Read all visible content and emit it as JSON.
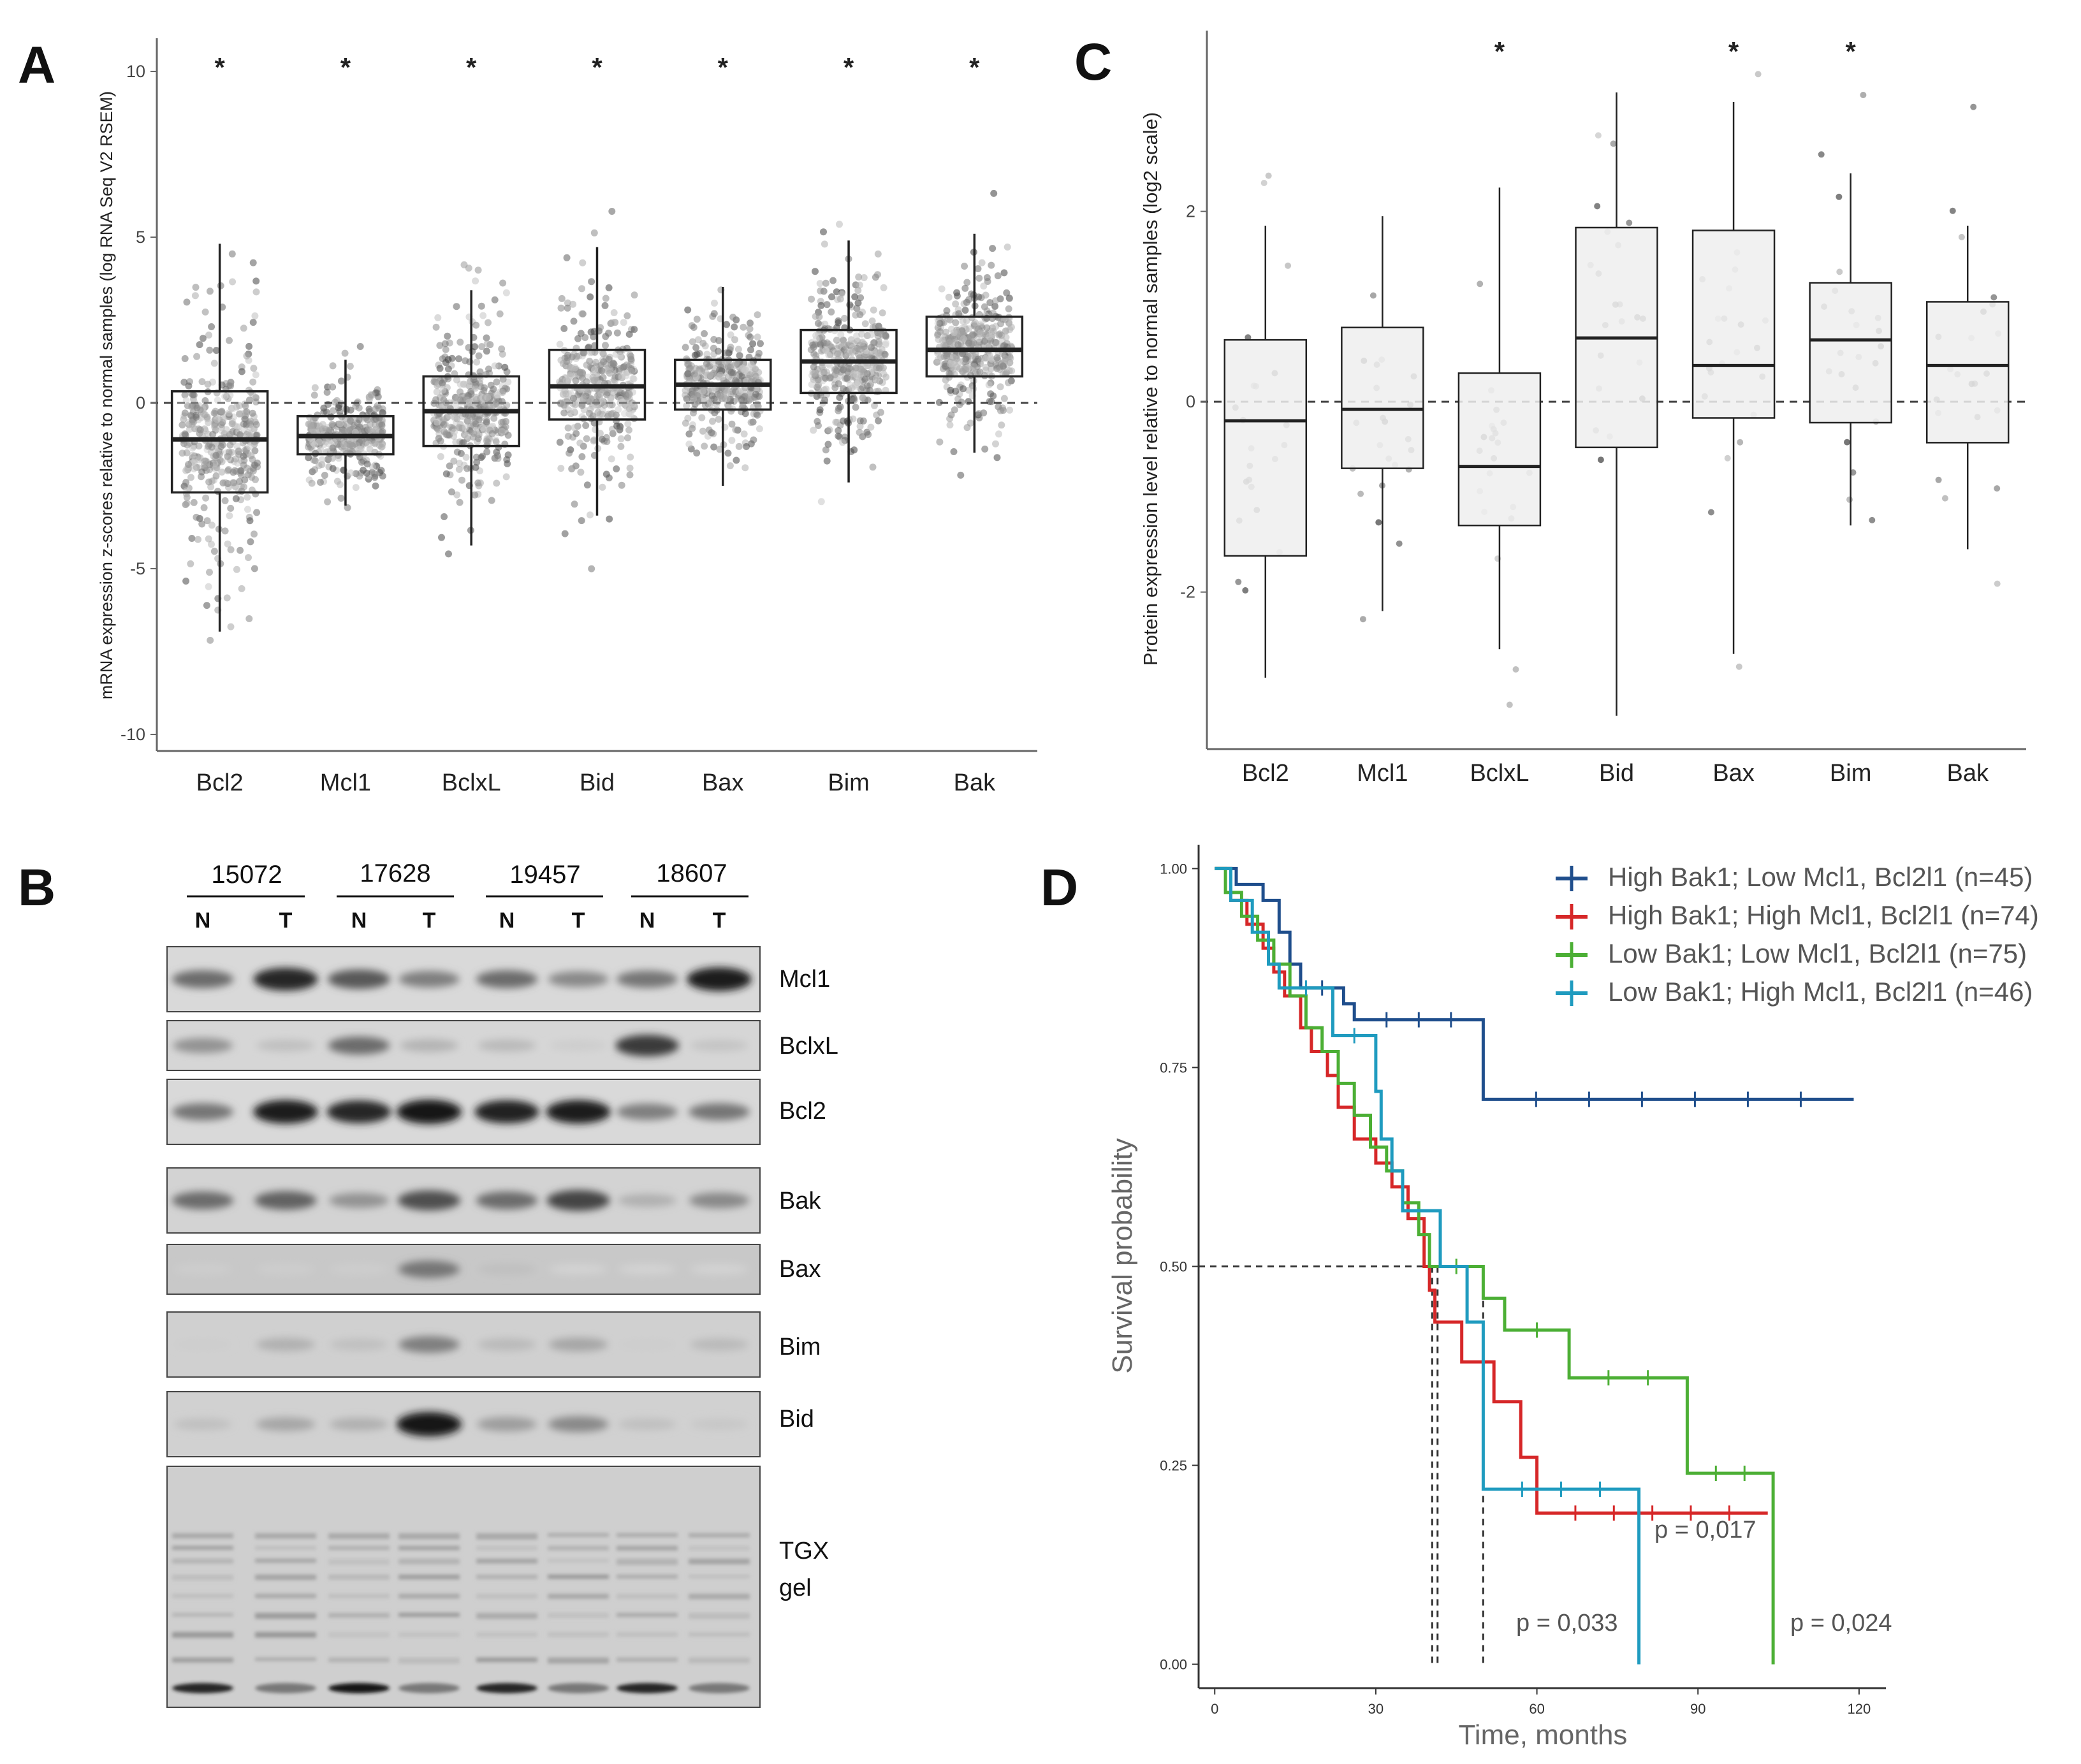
{
  "chart_data": [
    {
      "panel": "A",
      "type": "box",
      "ylabel": "mRNA expression z-scores relative to normal samples (log RNA Seq V2 RSEM)",
      "ylim": [
        -10.5,
        11
      ],
      "yticks": [
        10,
        5,
        0,
        -5,
        -10
      ],
      "reference_line": 0,
      "categories": [
        "Bcl2",
        "Mcl1",
        "BclxL",
        "Bid",
        "Bax",
        "Bim",
        "Bak"
      ],
      "significance": [
        "*",
        "*",
        "*",
        "*",
        "*",
        "*",
        "*"
      ],
      "boxes": [
        {
          "q1": -2.7,
          "median": -1.1,
          "q3": 0.35,
          "lo": -6.9,
          "hi": 4.8
        },
        {
          "q1": -1.55,
          "median": -1.0,
          "q3": -0.4,
          "lo": -3.1,
          "hi": 1.3
        },
        {
          "q1": -1.3,
          "median": -0.25,
          "q3": 0.8,
          "lo": -4.3,
          "hi": 3.4
        },
        {
          "q1": -0.5,
          "median": 0.5,
          "q3": 1.6,
          "lo": -3.4,
          "hi": 4.7
        },
        {
          "q1": -0.2,
          "median": 0.55,
          "q3": 1.3,
          "lo": -2.5,
          "hi": 3.5
        },
        {
          "q1": 0.3,
          "median": 1.25,
          "q3": 2.2,
          "lo": -2.4,
          "hi": 4.9
        },
        {
          "q1": 0.8,
          "median": 1.6,
          "q3": 2.6,
          "lo": -1.5,
          "hi": 5.1
        }
      ]
    },
    {
      "panel": "C",
      "type": "box",
      "ylabel": "Protein expression level relative to normal samples (log2 scale)",
      "ylim": [
        -3.65,
        3.9
      ],
      "yticks": [
        2,
        0,
        -2
      ],
      "reference_line": 0,
      "categories": [
        "Bcl2",
        "Mcl1",
        "BclxL",
        "Bid",
        "Bax",
        "Bim",
        "Bak"
      ],
      "significance": [
        "",
        "",
        "*",
        "",
        "*",
        "*",
        ""
      ],
      "boxes": [
        {
          "q1": -1.62,
          "median": -0.2,
          "q3": 0.65,
          "lo": -2.9,
          "hi": 1.85
        },
        {
          "q1": -0.7,
          "median": -0.08,
          "q3": 0.78,
          "lo": -2.2,
          "hi": 1.95
        },
        {
          "q1": -1.3,
          "median": -0.68,
          "q3": 0.3,
          "lo": -2.6,
          "hi": 2.25
        },
        {
          "q1": -0.48,
          "median": 0.67,
          "q3": 1.83,
          "lo": -3.3,
          "hi": 3.25
        },
        {
          "q1": -0.17,
          "median": 0.38,
          "q3": 1.8,
          "lo": -2.65,
          "hi": 3.15
        },
        {
          "q1": -0.22,
          "median": 0.65,
          "q3": 1.25,
          "lo": -1.3,
          "hi": 2.4
        },
        {
          "q1": -0.43,
          "median": 0.38,
          "q3": 1.05,
          "lo": -1.55,
          "hi": 1.85
        }
      ]
    },
    {
      "panel": "D",
      "type": "line",
      "subtype": "kaplan-meier",
      "xlabel": "Time, months",
      "ylabel": "Survival probability",
      "xlim": [
        -3,
        125
      ],
      "ylim": [
        -0.03,
        1.03
      ],
      "xticks": [
        0,
        30,
        60,
        90,
        120
      ],
      "yticks": [
        "1.00",
        "0.75",
        "0.50",
        "0.25",
        "0.00"
      ],
      "median_line": 0.5,
      "median_times": [
        40.5,
        41.5,
        50
      ],
      "series": [
        {
          "name": "High Bak1; Low Mcl1, Bcl2l1 (n=45)",
          "color": "#1f4e8c",
          "points": [
            [
              0,
              1
            ],
            [
              4,
              1
            ],
            [
              4,
              0.98
            ],
            [
              9,
              0.98
            ],
            [
              9,
              0.96
            ],
            [
              12,
              0.96
            ],
            [
              12,
              0.92
            ],
            [
              14,
              0.92
            ],
            [
              14,
              0.88
            ],
            [
              16,
              0.88
            ],
            [
              16,
              0.85
            ],
            [
              24,
              0.85
            ],
            [
              24,
              0.83
            ],
            [
              26,
              0.83
            ],
            [
              26,
              0.81
            ],
            [
              50,
              0.81
            ],
            [
              50,
              0.71
            ],
            [
              119,
              0.71
            ]
          ]
        },
        {
          "name": "High Bak1; High Mcl1, Bcl2l1 (n=74)",
          "color": "#d62728",
          "points": [
            [
              0,
              1
            ],
            [
              3,
              1
            ],
            [
              3,
              0.96
            ],
            [
              6,
              0.96
            ],
            [
              6,
              0.93
            ],
            [
              9,
              0.93
            ],
            [
              9,
              0.9
            ],
            [
              11,
              0.9
            ],
            [
              11,
              0.87
            ],
            [
              13,
              0.87
            ],
            [
              13,
              0.84
            ],
            [
              16,
              0.84
            ],
            [
              16,
              0.8
            ],
            [
              18,
              0.8
            ],
            [
              18,
              0.77
            ],
            [
              21,
              0.77
            ],
            [
              21,
              0.74
            ],
            [
              23,
              0.74
            ],
            [
              23,
              0.7
            ],
            [
              26,
              0.7
            ],
            [
              26,
              0.66
            ],
            [
              30,
              0.66
            ],
            [
              30,
              0.63
            ],
            [
              33,
              0.63
            ],
            [
              33,
              0.6
            ],
            [
              36,
              0.6
            ],
            [
              36,
              0.56
            ],
            [
              39,
              0.56
            ],
            [
              39,
              0.5
            ],
            [
              40,
              0.5
            ],
            [
              40,
              0.47
            ],
            [
              41,
              0.47
            ],
            [
              41,
              0.43
            ],
            [
              46,
              0.43
            ],
            [
              46,
              0.38
            ],
            [
              52,
              0.38
            ],
            [
              52,
              0.33
            ],
            [
              57,
              0.33
            ],
            [
              57,
              0.26
            ],
            [
              60,
              0.26
            ],
            [
              60,
              0.19
            ],
            [
              103,
              0.19
            ]
          ]
        },
        {
          "name": "Low Bak1; Low Mcl1, Bcl2l1 (n=75)",
          "color": "#4caf35",
          "points": [
            [
              0,
              1
            ],
            [
              2,
              1
            ],
            [
              2,
              0.97
            ],
            [
              5,
              0.97
            ],
            [
              5,
              0.94
            ],
            [
              8,
              0.94
            ],
            [
              8,
              0.91
            ],
            [
              11,
              0.91
            ],
            [
              11,
              0.88
            ],
            [
              14,
              0.88
            ],
            [
              14,
              0.84
            ],
            [
              17,
              0.84
            ],
            [
              17,
              0.8
            ],
            [
              20,
              0.8
            ],
            [
              20,
              0.77
            ],
            [
              23,
              0.77
            ],
            [
              23,
              0.73
            ],
            [
              26,
              0.73
            ],
            [
              26,
              0.69
            ],
            [
              29,
              0.69
            ],
            [
              29,
              0.65
            ],
            [
              32,
              0.65
            ],
            [
              32,
              0.62
            ],
            [
              35,
              0.62
            ],
            [
              35,
              0.58
            ],
            [
              38,
              0.58
            ],
            [
              38,
              0.54
            ],
            [
              40,
              0.54
            ],
            [
              40,
              0.5
            ],
            [
              50,
              0.5
            ],
            [
              50,
              0.46
            ],
            [
              54,
              0.46
            ],
            [
              54,
              0.42
            ],
            [
              66,
              0.42
            ],
            [
              66,
              0.36
            ],
            [
              88,
              0.36
            ],
            [
              88,
              0.24
            ],
            [
              104,
              0.24
            ],
            [
              104,
              0
            ]
          ]
        },
        {
          "name": "Low Bak1; High Mcl1, Bcl2l1 (n=46)",
          "color": "#1f9bbf",
          "points": [
            [
              0,
              1
            ],
            [
              3,
              1
            ],
            [
              3,
              0.96
            ],
            [
              7,
              0.96
            ],
            [
              7,
              0.92
            ],
            [
              10,
              0.92
            ],
            [
              10,
              0.88
            ],
            [
              12,
              0.88
            ],
            [
              12,
              0.85
            ],
            [
              22,
              0.85
            ],
            [
              22,
              0.79
            ],
            [
              30,
              0.79
            ],
            [
              30,
              0.72
            ],
            [
              31,
              0.72
            ],
            [
              31,
              0.66
            ],
            [
              33,
              0.66
            ],
            [
              33,
              0.62
            ],
            [
              35,
              0.62
            ],
            [
              35,
              0.57
            ],
            [
              42,
              0.57
            ],
            [
              42,
              0.5
            ],
            [
              47,
              0.5
            ],
            [
              47,
              0.43
            ],
            [
              50,
              0.43
            ],
            [
              50,
              0.22
            ],
            [
              79,
              0.22
            ],
            [
              79,
              0
            ]
          ]
        }
      ],
      "annotations": [
        "p = 0,017",
        "p = 0,033",
        "p = 0,024"
      ]
    }
  ],
  "figure": {
    "panel_labels": [
      "A",
      "B",
      "C",
      "D"
    ],
    "blot": {
      "samples": [
        "15072",
        "17628",
        "19457",
        "18607"
      ],
      "lanes": [
        "N",
        "T",
        "N",
        "T",
        "N",
        "T",
        "N",
        "T"
      ],
      "proteins": [
        "Mcl1",
        "BclxL",
        "Bcl2",
        "Bak",
        "Bax",
        "Bim",
        "Bid"
      ],
      "gel_label_1": "TGX",
      "gel_label_2": "gel"
    }
  }
}
